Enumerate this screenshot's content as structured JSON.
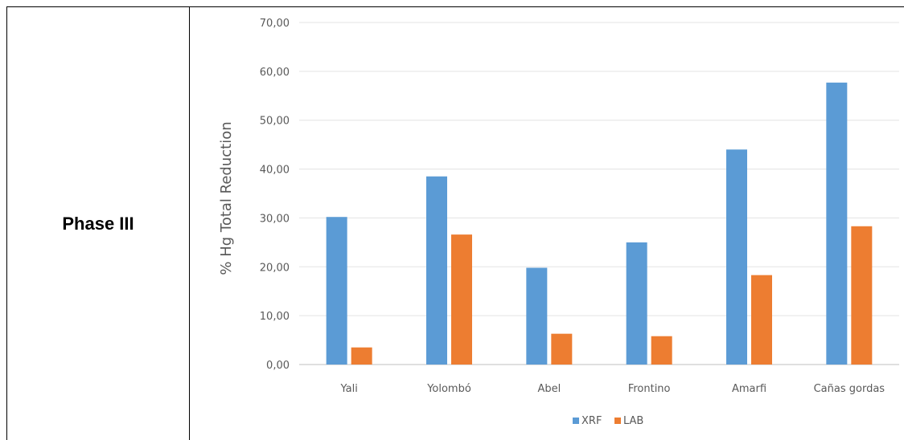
{
  "table": {
    "row_label": "Phase III"
  },
  "chart_data": {
    "type": "bar",
    "title": "",
    "xlabel": "",
    "ylabel": "% Hg Total Reduction",
    "ylim": [
      0,
      70
    ],
    "yticks": [
      "0,00",
      "10,00",
      "20,00",
      "30,00",
      "40,00",
      "50,00",
      "60,00",
      "70,00"
    ],
    "categories": [
      "Yali",
      "Yolombó",
      "Abel",
      "Frontino",
      "Amarfi",
      "Cañas gordas"
    ],
    "series": [
      {
        "name": "XRF",
        "color": "#5B9BD5",
        "values": [
          30.2,
          38.5,
          19.8,
          25.0,
          44.0,
          57.7
        ]
      },
      {
        "name": "LAB",
        "color": "#ED7D31",
        "values": [
          3.5,
          26.6,
          6.3,
          5.8,
          18.3,
          28.3
        ]
      }
    ],
    "grid": true,
    "legend": "bottom"
  }
}
